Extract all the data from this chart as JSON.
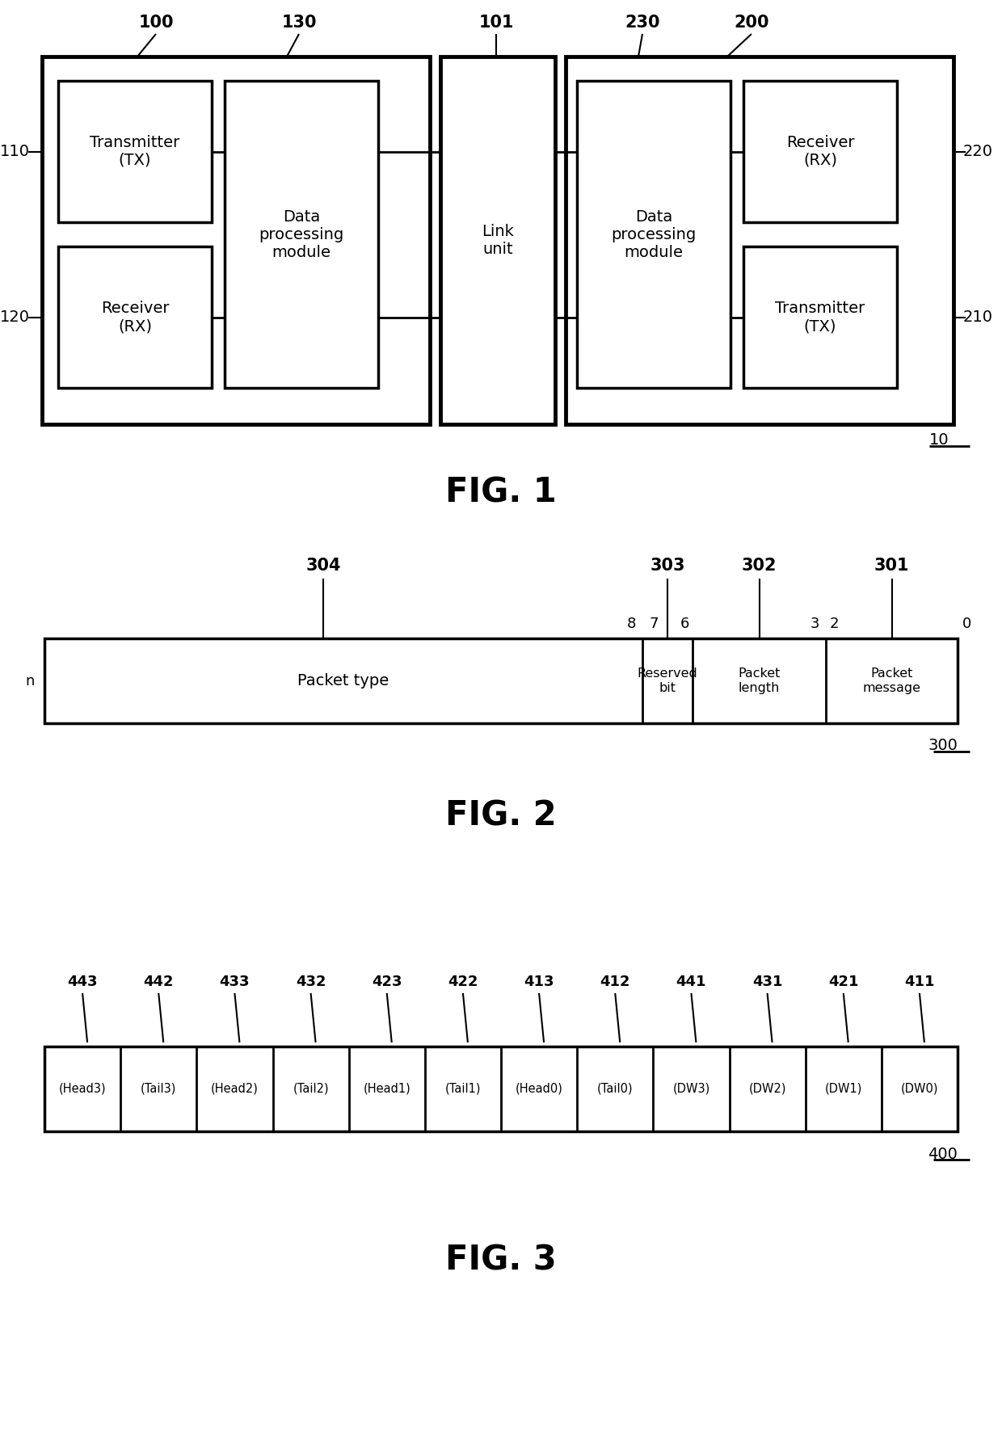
{
  "bg_color": "#ffffff",
  "fig1": {
    "title": "FIG. 1",
    "label_10": "10",
    "label_100": "100",
    "label_101": "101",
    "label_110": "110",
    "label_120": "120",
    "label_130": "130",
    "label_200": "200",
    "label_210": "210",
    "label_220": "220",
    "label_230": "230",
    "chip1_text": "Transmitter\n(TX)",
    "chip2_text": "Receiver\n(RX)",
    "chip3_text": "Data\nprocessing\nmodule",
    "chip4_text": "Link\nunit",
    "chip5_text": "Data\nprocessing\nmodule",
    "chip6_text": "Receiver\n(RX)",
    "chip7_text": "Transmitter\n(TX)"
  },
  "fig2": {
    "title": "FIG. 2",
    "label_300": "300",
    "label_301": "301",
    "label_302": "302",
    "label_303": "303",
    "label_304": "304"
  },
  "fig3": {
    "title": "FIG. 3",
    "label_400": "400",
    "labels_top": [
      "443",
      "442",
      "433",
      "432",
      "423",
      "422",
      "413",
      "412",
      "441",
      "431",
      "421",
      "411"
    ],
    "cells": [
      "(Head3)",
      "(Tail3)",
      "(Head2)",
      "(Tail2)",
      "(Head1)",
      "(Tail1)",
      "(Head0)",
      "(Tail0)",
      "(DW3)",
      "(DW2)",
      "(DW1)",
      "(DW0)"
    ]
  }
}
